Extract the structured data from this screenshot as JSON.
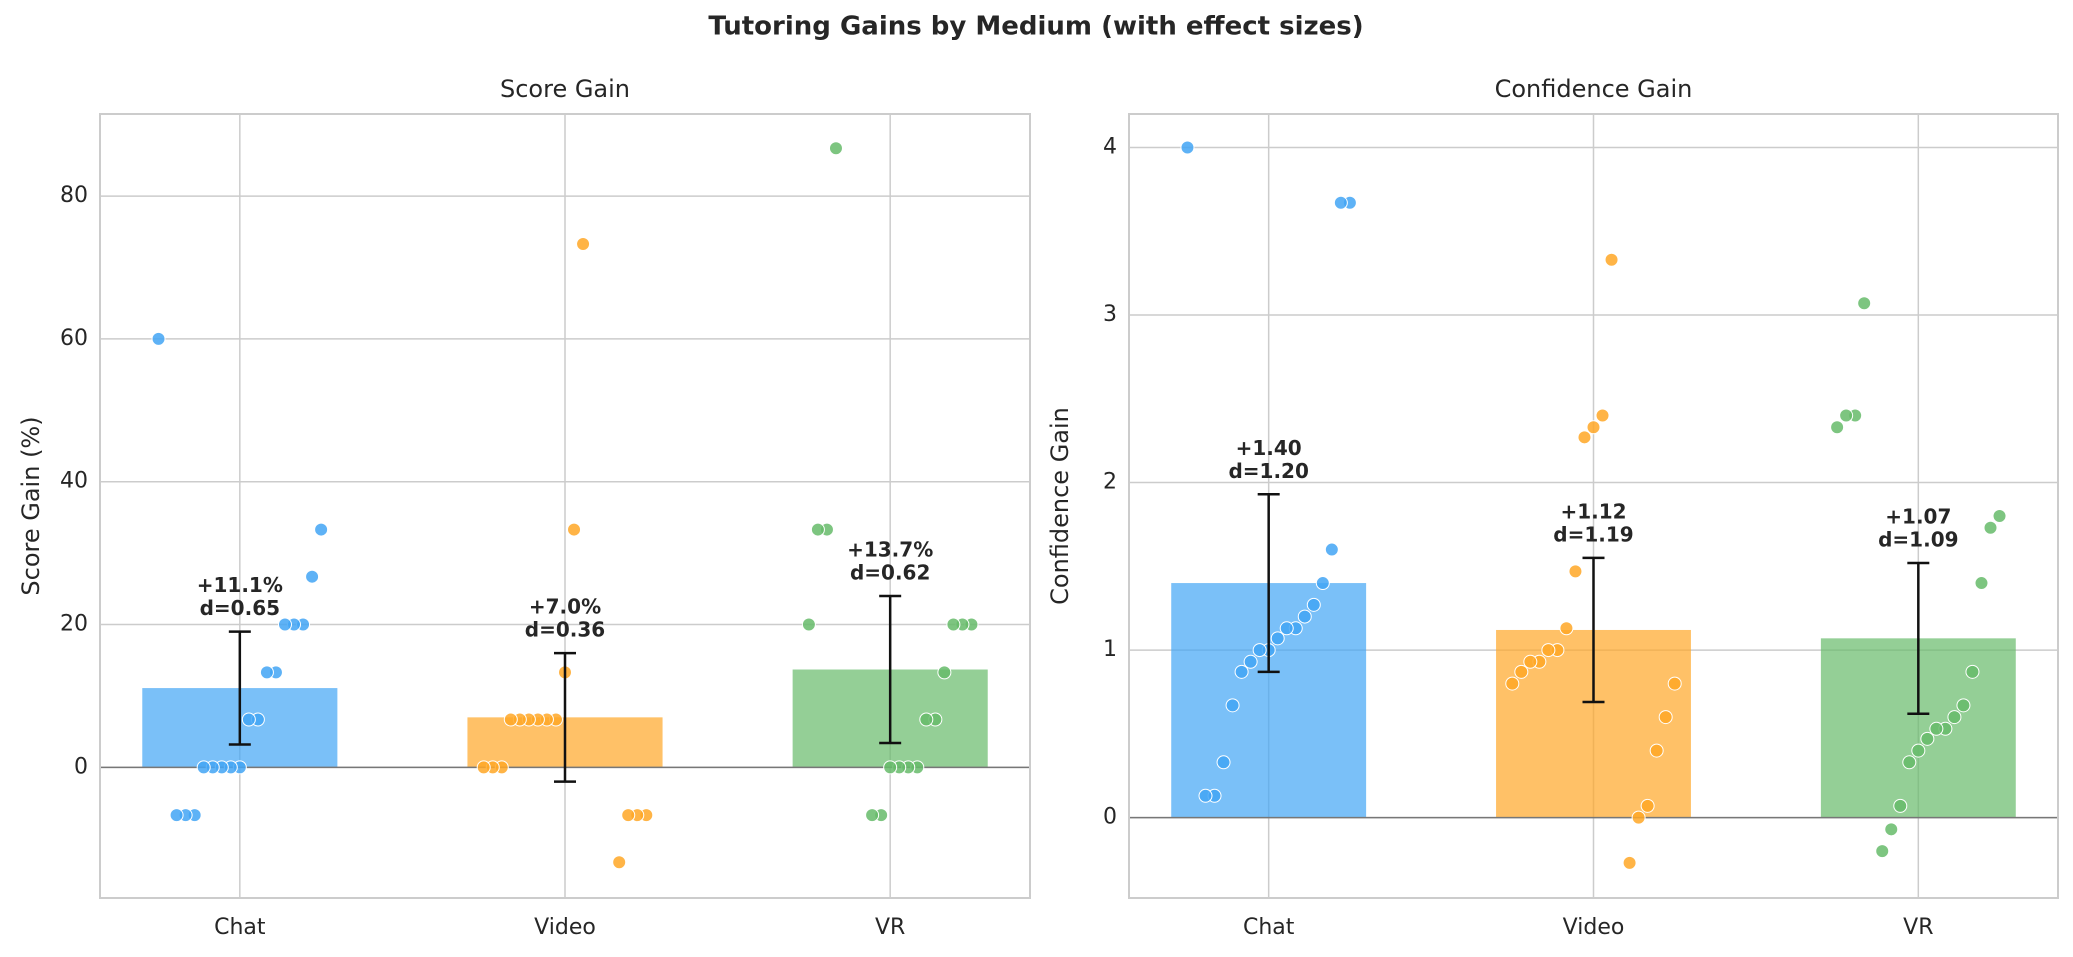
{
  "title": "Tutoring Gains by Medium (with effect sizes)",
  "chart_data": [
    {
      "type": "bar",
      "title": "Score Gain",
      "y_label": "Score Gain (%)",
      "categories": [
        "Chat",
        "Video",
        "VR"
      ],
      "colors": [
        "#42a5f5",
        "#ffa726",
        "#66bb6a"
      ],
      "values": [
        11.1,
        7.0,
        13.7
      ],
      "value_labels": [
        "+11.1%",
        "+7.0%",
        "+13.7%"
      ],
      "effect_labels": [
        "d=0.65",
        "d=0.36",
        "d=0.62"
      ],
      "errors": [
        7.9,
        9.0,
        10.3
      ],
      "points": [
        [
          60,
          33.3,
          26.7,
          20,
          20,
          20,
          13.3,
          13.3,
          6.7,
          6.7,
          0,
          0,
          0,
          0,
          0,
          -6.7,
          -6.7,
          -6.7
        ],
        [
          73.3,
          33.3,
          13.3,
          6.7,
          6.7,
          6.7,
          6.7,
          6.7,
          6.7,
          0,
          0,
          0,
          -6.7,
          -6.7,
          -6.7,
          -13.3
        ],
        [
          86.7,
          33.3,
          33.3,
          20,
          20,
          20,
          20,
          13.3,
          6.7,
          6.7,
          0,
          0,
          0,
          0,
          -6.7,
          -6.7
        ]
      ],
      "ylim": [
        -18.3,
        91.5
      ],
      "yticks": [
        0,
        20,
        40,
        60,
        80
      ],
      "grid": true
    },
    {
      "type": "bar",
      "title": "Confidence Gain",
      "y_label": "Confidence Gain",
      "categories": [
        "Chat",
        "Video",
        "VR"
      ],
      "colors": [
        "#42a5f5",
        "#ffa726",
        "#66bb6a"
      ],
      "values": [
        1.4,
        1.12,
        1.07
      ],
      "value_labels": [
        "+1.40",
        "+1.12",
        "+1.07"
      ],
      "effect_labels": [
        "d=1.20",
        "d=1.19",
        "d=1.09"
      ],
      "errors": [
        0.53,
        0.43,
        0.45
      ],
      "points": [
        [
          4.0,
          3.67,
          3.67,
          1.6,
          1.4,
          1.27,
          1.2,
          1.13,
          1.13,
          1.07,
          1.0,
          1.0,
          0.93,
          0.87,
          0.67,
          0.33,
          0.13,
          0.13
        ],
        [
          3.33,
          2.4,
          2.33,
          2.27,
          1.47,
          1.13,
          1.0,
          1.0,
          0.93,
          0.93,
          0.87,
          0.8,
          0.8,
          0.6,
          0.4,
          0.07,
          0.0,
          -0.27
        ],
        [
          3.07,
          2.4,
          2.4,
          2.33,
          1.8,
          1.73,
          1.4,
          0.87,
          0.67,
          0.6,
          0.53,
          0.53,
          0.47,
          0.4,
          0.33,
          0.07,
          -0.07,
          -0.2
        ]
      ],
      "ylim": [
        -0.48,
        4.2
      ],
      "yticks": [
        0,
        1,
        2,
        3,
        4
      ],
      "grid": true
    }
  ]
}
